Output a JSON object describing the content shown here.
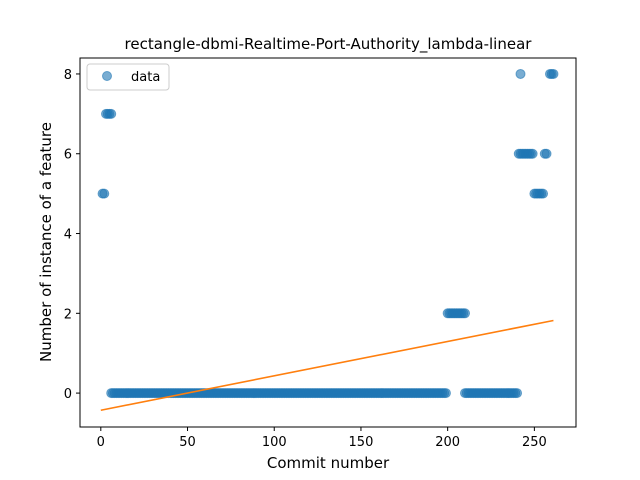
{
  "chart_data": {
    "type": "scatter",
    "title": "rectangle-dbmi-Realtime-Port-Authority_lambda-linear",
    "xlabel": "Commit number",
    "ylabel": "Number of instance of a feature",
    "xlim": [
      -12,
      274
    ],
    "ylim": [
      -0.85,
      8.4
    ],
    "xticks": [
      0,
      50,
      100,
      150,
      200,
      250
    ],
    "yticks": [
      0,
      2,
      4,
      6,
      8
    ],
    "grid": false,
    "legend": {
      "placement": "top-left",
      "entries": [
        "data"
      ]
    },
    "series": [
      {
        "name": "data",
        "kind": "scatter",
        "color": "#1f77b4",
        "segments": [
          {
            "x_start": 1,
            "x_end": 2,
            "y": 5
          },
          {
            "x_start": 3,
            "x_end": 6,
            "y": 7
          },
          {
            "x_start": 6,
            "x_end": 199,
            "y": 0
          },
          {
            "x_start": 200,
            "x_end": 210,
            "y": 2
          },
          {
            "x_start": 210,
            "x_end": 240,
            "y": 0
          },
          {
            "x_start": 241,
            "x_end": 249,
            "y": 6
          },
          {
            "x_start": 250,
            "x_end": 255,
            "y": 5
          },
          {
            "x_start": 256,
            "x_end": 257,
            "y": 6
          },
          {
            "x_start": 259,
            "x_end": 261,
            "y": 8
          }
        ],
        "points": [
          [
            242,
            8
          ]
        ]
      },
      {
        "name": "",
        "kind": "line",
        "color": "#ff7f0e",
        "points": [
          [
            0,
            -0.43
          ],
          [
            261,
            1.82
          ]
        ]
      }
    ]
  }
}
